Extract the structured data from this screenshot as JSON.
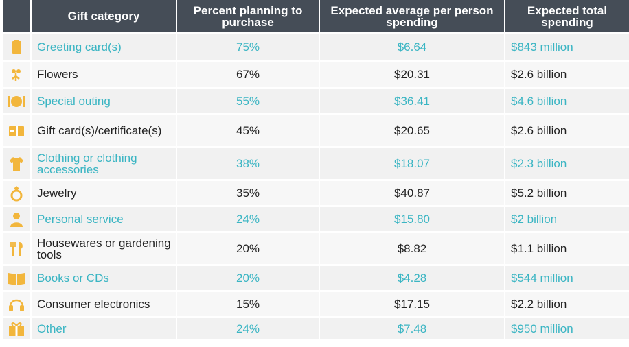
{
  "header": {
    "icon_col": "",
    "category": "Gift category",
    "percent": "Percent planning to purchase",
    "average": "Expected average per person spending",
    "total": "Expected total spending"
  },
  "colors": {
    "header_bg": "#454d57",
    "accent_text": "#3ab5c3",
    "icon": "#f2b63c"
  },
  "rows": [
    {
      "icon": "greeting-card-icon",
      "category": "Greeting card(s)",
      "percent": "75%",
      "average": "$6.64",
      "total": "$843 million"
    },
    {
      "icon": "flowers-icon",
      "category": "Flowers",
      "percent": "67%",
      "average": "$20.31",
      "total": "$2.6 billion"
    },
    {
      "icon": "plate-cutlery-icon",
      "category": "Special outing",
      "percent": "55%",
      "average": "$36.41",
      "total": "$4.6 billion"
    },
    {
      "icon": "gift-card-icon",
      "category": "Gift card(s)/certificate(s)",
      "percent": "45%",
      "average": "$20.65",
      "total": "$2.6 billion"
    },
    {
      "icon": "shirt-icon",
      "category": "Clothing or clothing accessories",
      "percent": "38%",
      "average": "$18.07",
      "total": "$2.3 billion"
    },
    {
      "icon": "ring-icon",
      "category": "Jewelry",
      "percent": "35%",
      "average": "$40.87",
      "total": "$5.2 billion"
    },
    {
      "icon": "person-icon",
      "category": "Personal service",
      "percent": "24%",
      "average": "$15.80",
      "total": "$2 billion"
    },
    {
      "icon": "utensils-icon",
      "category": "Housewares or gardening tools",
      "percent": "20%",
      "average": "$8.82",
      "total": "$1.1 billion"
    },
    {
      "icon": "book-icon",
      "category": "Books or CDs",
      "percent": "20%",
      "average": "$4.28",
      "total": "$544 million"
    },
    {
      "icon": "headphones-icon",
      "category": "Consumer electronics",
      "percent": "15%",
      "average": "$17.15",
      "total": "$2.2 billion"
    },
    {
      "icon": "gift-box-icon",
      "category": "Other",
      "percent": "24%",
      "average": "$7.48",
      "total": "$950 million"
    }
  ]
}
